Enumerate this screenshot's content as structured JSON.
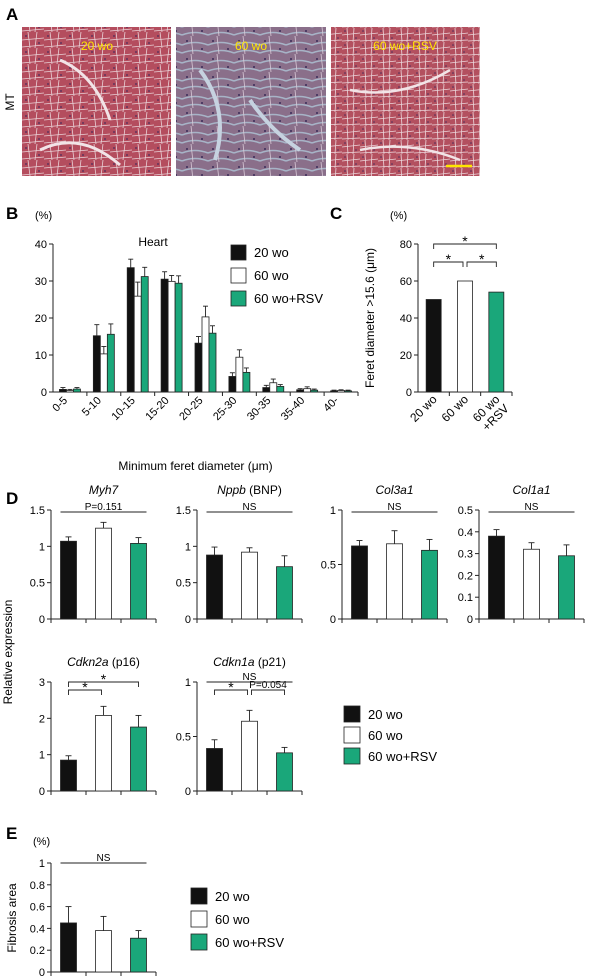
{
  "colors": {
    "black": "#111111",
    "white": "#ffffff",
    "green": "#1aa77a",
    "overlay_text": "#ffe600",
    "scale_bar": "#ffe600"
  },
  "panel_letters": {
    "A": "A",
    "B": "B",
    "C": "C",
    "D": "D",
    "E": "E"
  },
  "panelA": {
    "row_label": "MT",
    "images": [
      {
        "label": "20 wo",
        "stain_tone": "#b44d5e"
      },
      {
        "label": "60 wo",
        "stain_tone": "#8a6f8a"
      },
      {
        "label": "60 wo+RSV",
        "stain_tone": "#b3505f"
      }
    ]
  },
  "legend": {
    "entries": [
      {
        "label": "20 wo",
        "color": "#111111"
      },
      {
        "label": "60 wo",
        "color": "#ffffff"
      },
      {
        "label": "60 wo+RSV",
        "color": "#1aa77a"
      }
    ]
  },
  "chart_data": [
    {
      "id": "B",
      "type": "bar",
      "title": "Heart",
      "unit_label": "(%)",
      "xlabel": "Minimum feret diameter (μm)",
      "ylabel": "",
      "ylim": [
        0,
        40
      ],
      "yticks": [
        0,
        10,
        20,
        30,
        40
      ],
      "categories": [
        "0-5",
        "5-10",
        "10-15",
        "15-20",
        "20-25",
        "25-30",
        "30-35",
        "35-40",
        "40-"
      ],
      "series": [
        {
          "name": "20 wo",
          "values": [
            0.7,
            15.2,
            33.6,
            30.5,
            13.2,
            4.2,
            1.2,
            0.6,
            0.3
          ],
          "errors": [
            0.5,
            3.0,
            2.3,
            2.0,
            1.8,
            1.0,
            0.6,
            0.3,
            0.2
          ]
        },
        {
          "name": "60 wo",
          "values": [
            0.4,
            10.3,
            25.9,
            29.9,
            20.3,
            9.4,
            2.5,
            0.9,
            0.4
          ],
          "errors": [
            0.3,
            2.0,
            3.8,
            1.6,
            2.9,
            2.0,
            1.0,
            0.5,
            0.2
          ]
        },
        {
          "name": "60 wo+RSV",
          "values": [
            0.8,
            15.6,
            31.2,
            29.4,
            15.9,
            5.3,
            1.5,
            0.5,
            0.3
          ],
          "errors": [
            0.4,
            2.8,
            2.5,
            2.0,
            2.0,
            1.2,
            0.5,
            0.3,
            0.2
          ]
        }
      ]
    },
    {
      "id": "C",
      "type": "bar",
      "unit_label": "(%)",
      "ylabel": "Feret diameter >15.6 (μm)",
      "xlabel": "",
      "ylim": [
        0,
        80
      ],
      "yticks": [
        0,
        20,
        40,
        60,
        80
      ],
      "categories": [
        "20 wo",
        "60 wo",
        "60 wo\n+RSV"
      ],
      "values": [
        50,
        60,
        54
      ],
      "brackets": [
        {
          "from": 0,
          "to": 1,
          "label": "*"
        },
        {
          "from": 1,
          "to": 2,
          "label": "*"
        },
        {
          "from": 0,
          "to": 2,
          "label": "*"
        }
      ]
    },
    {
      "id": "D-Myh7",
      "type": "bar",
      "gene": "Myh7",
      "suffix": "",
      "ylim": [
        0,
        1.5
      ],
      "yticks": [
        "0",
        "0.5",
        "1",
        "1.5"
      ],
      "categories": [
        "20 wo",
        "60 wo",
        "60 wo+RSV"
      ],
      "values": [
        1.07,
        1.25,
        1.04
      ],
      "errors": [
        0.06,
        0.08,
        0.08
      ],
      "brackets": [
        {
          "from": 0,
          "to": 2,
          "label": "P=0.151",
          "flat": true
        }
      ]
    },
    {
      "id": "D-Nppb",
      "type": "bar",
      "gene": "Nppb",
      "suffix": "(BNP)",
      "ylim": [
        0,
        1.5
      ],
      "yticks": [
        "0",
        "0.5",
        "1",
        "1.5"
      ],
      "categories": [
        "20 wo",
        "60 wo",
        "60 wo+RSV"
      ],
      "values": [
        0.88,
        0.92,
        0.72
      ],
      "errors": [
        0.11,
        0.06,
        0.15
      ],
      "brackets": [
        {
          "from": 0,
          "to": 2,
          "label": "NS",
          "flat": true
        }
      ]
    },
    {
      "id": "D-Col3a1",
      "type": "bar",
      "gene": "Col3a1",
      "suffix": "",
      "ylim": [
        0,
        1
      ],
      "yticks": [
        "0",
        "0.5",
        "1"
      ],
      "categories": [
        "20 wo",
        "60 wo",
        "60 wo+RSV"
      ],
      "values": [
        0.67,
        0.69,
        0.63
      ],
      "errors": [
        0.05,
        0.12,
        0.1
      ],
      "brackets": [
        {
          "from": 0,
          "to": 2,
          "label": "NS",
          "flat": true
        }
      ]
    },
    {
      "id": "D-Col1a1",
      "type": "bar",
      "gene": "Col1a1",
      "suffix": "",
      "ylim": [
        0,
        0.5
      ],
      "yticks": [
        "0",
        "0.1",
        "0.2",
        "0.3",
        "0.4",
        "0.5"
      ],
      "categories": [
        "20 wo",
        "60 wo",
        "60 wo+RSV"
      ],
      "values": [
        0.38,
        0.32,
        0.29
      ],
      "errors": [
        0.03,
        0.03,
        0.05
      ],
      "brackets": [
        {
          "from": 0,
          "to": 2,
          "label": "NS",
          "flat": true
        }
      ]
    },
    {
      "id": "D-Cdkn2a",
      "type": "bar",
      "gene": "Cdkn2a",
      "suffix": "(p16)",
      "ylim": [
        0,
        3
      ],
      "yticks": [
        "0",
        "1",
        "2",
        "3"
      ],
      "categories": [
        "20 wo",
        "60 wo",
        "60 wo+RSV"
      ],
      "values": [
        0.85,
        2.08,
        1.76
      ],
      "errors": [
        0.12,
        0.25,
        0.32
      ],
      "brackets": [
        {
          "from": 0,
          "to": 1,
          "label": "*"
        },
        {
          "from": 0,
          "to": 2,
          "label": "*"
        }
      ]
    },
    {
      "id": "D-Cdkn1a",
      "type": "bar",
      "gene": "Cdkn1a",
      "suffix": "(p21)",
      "ylim": [
        0,
        1
      ],
      "yticks": [
        "0",
        "0.5",
        "1"
      ],
      "categories": [
        "20 wo",
        "60 wo",
        "60 wo+RSV"
      ],
      "values": [
        0.39,
        0.64,
        0.35
      ],
      "errors": [
        0.08,
        0.1,
        0.05
      ],
      "brackets": [
        {
          "from": 0,
          "to": 1,
          "label": "*"
        },
        {
          "from": 1,
          "to": 2,
          "label": "P=0.054"
        },
        {
          "from": 0,
          "to": 2,
          "label": "NS",
          "flat": true
        }
      ]
    },
    {
      "id": "E",
      "type": "bar",
      "unit_label": "(%)",
      "ylabel": "Fibrosis area",
      "ylim": [
        0,
        1
      ],
      "yticks": [
        "0",
        "0.2",
        "0.4",
        "0.6",
        "0.8",
        "1"
      ],
      "categories": [
        "20 wo",
        "60 wo",
        "60 wo+RSV"
      ],
      "values": [
        0.45,
        0.38,
        0.31
      ],
      "errors": [
        0.15,
        0.13,
        0.07
      ],
      "brackets": [
        {
          "from": 0,
          "to": 2,
          "label": "NS",
          "flat": true
        }
      ]
    }
  ],
  "panelD_ylabel": "Relative expression"
}
